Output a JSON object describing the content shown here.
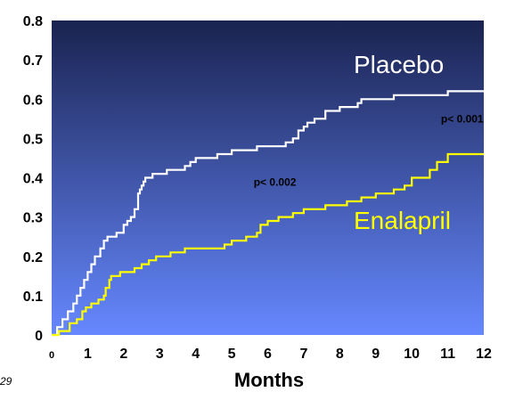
{
  "slide_number": "29",
  "chart_data": {
    "type": "line",
    "title": "",
    "xlabel": "Months",
    "ylabel": "",
    "xlim": [
      0,
      12
    ],
    "ylim": [
      0,
      0.8
    ],
    "x_ticks": [
      "0",
      "1",
      "2",
      "3",
      "4",
      "5",
      "6",
      "7",
      "8",
      "9",
      "10",
      "11",
      "12"
    ],
    "y_ticks": [
      "0",
      "0.1",
      "0.2",
      "0.3",
      "0.4",
      "0.5",
      "0.6",
      "0.7",
      "0.8"
    ],
    "grid": false,
    "background_colors": {
      "top": "#1a2350",
      "bottom": "#6688ff"
    },
    "series": [
      {
        "name": "Placebo",
        "color": "#ffffff",
        "step": true,
        "points": [
          [
            0,
            0
          ],
          [
            0.15,
            0.02
          ],
          [
            0.3,
            0.04
          ],
          [
            0.45,
            0.06
          ],
          [
            0.6,
            0.08
          ],
          [
            0.7,
            0.1
          ],
          [
            0.8,
            0.12
          ],
          [
            0.9,
            0.14
          ],
          [
            1.0,
            0.16
          ],
          [
            1.1,
            0.18
          ],
          [
            1.2,
            0.2
          ],
          [
            1.35,
            0.22
          ],
          [
            1.45,
            0.24
          ],
          [
            1.55,
            0.25
          ],
          [
            1.8,
            0.26
          ],
          [
            2.0,
            0.28
          ],
          [
            2.1,
            0.29
          ],
          [
            2.2,
            0.3
          ],
          [
            2.3,
            0.32
          ],
          [
            2.4,
            0.36
          ],
          [
            2.45,
            0.37
          ],
          [
            2.5,
            0.38
          ],
          [
            2.55,
            0.39
          ],
          [
            2.6,
            0.4
          ],
          [
            2.8,
            0.41
          ],
          [
            3.2,
            0.42
          ],
          [
            3.5,
            0.42
          ],
          [
            3.7,
            0.43
          ],
          [
            3.85,
            0.44
          ],
          [
            4.0,
            0.45
          ],
          [
            4.3,
            0.45
          ],
          [
            4.6,
            0.46
          ],
          [
            5.0,
            0.47
          ],
          [
            5.5,
            0.47
          ],
          [
            5.7,
            0.48
          ],
          [
            6.0,
            0.48
          ],
          [
            6.5,
            0.49
          ],
          [
            6.7,
            0.5
          ],
          [
            6.85,
            0.52
          ],
          [
            7.0,
            0.53
          ],
          [
            7.1,
            0.54
          ],
          [
            7.3,
            0.55
          ],
          [
            7.6,
            0.57
          ],
          [
            8.0,
            0.58
          ],
          [
            8.5,
            0.59
          ],
          [
            8.6,
            0.6
          ],
          [
            9.0,
            0.6
          ],
          [
            9.5,
            0.61
          ],
          [
            10.0,
            0.61
          ],
          [
            10.5,
            0.61
          ],
          [
            11.0,
            0.62
          ],
          [
            12.0,
            0.62
          ]
        ]
      },
      {
        "name": "Enalapril",
        "color": "#ffff00",
        "step": true,
        "points": [
          [
            0,
            0
          ],
          [
            0.2,
            0.01
          ],
          [
            0.5,
            0.03
          ],
          [
            0.7,
            0.04
          ],
          [
            0.85,
            0.06
          ],
          [
            0.95,
            0.07
          ],
          [
            1.1,
            0.08
          ],
          [
            1.3,
            0.09
          ],
          [
            1.45,
            0.1
          ],
          [
            1.5,
            0.12
          ],
          [
            1.6,
            0.14
          ],
          [
            1.65,
            0.15
          ],
          [
            1.9,
            0.16
          ],
          [
            2.0,
            0.16
          ],
          [
            2.3,
            0.17
          ],
          [
            2.5,
            0.18
          ],
          [
            2.7,
            0.19
          ],
          [
            2.9,
            0.2
          ],
          [
            3.3,
            0.21
          ],
          [
            3.7,
            0.22
          ],
          [
            4.3,
            0.22
          ],
          [
            4.8,
            0.23
          ],
          [
            5.0,
            0.24
          ],
          [
            5.4,
            0.25
          ],
          [
            5.7,
            0.26
          ],
          [
            5.8,
            0.28
          ],
          [
            6.0,
            0.29
          ],
          [
            6.3,
            0.3
          ],
          [
            6.7,
            0.31
          ],
          [
            7.0,
            0.32
          ],
          [
            7.4,
            0.32
          ],
          [
            7.6,
            0.33
          ],
          [
            8.0,
            0.33
          ],
          [
            8.2,
            0.34
          ],
          [
            8.6,
            0.35
          ],
          [
            9.0,
            0.36
          ],
          [
            9.5,
            0.37
          ],
          [
            9.8,
            0.38
          ],
          [
            10.0,
            0.4
          ],
          [
            10.3,
            0.4
          ],
          [
            10.5,
            0.42
          ],
          [
            10.7,
            0.44
          ],
          [
            11.0,
            0.46
          ],
          [
            12.0,
            0.46
          ]
        ]
      }
    ],
    "annotations": [
      {
        "text": "p< 0.002",
        "x": 6.2,
        "y": 0.38
      },
      {
        "text": "p< 0.001",
        "x": 11.4,
        "y": 0.54
      }
    ]
  }
}
